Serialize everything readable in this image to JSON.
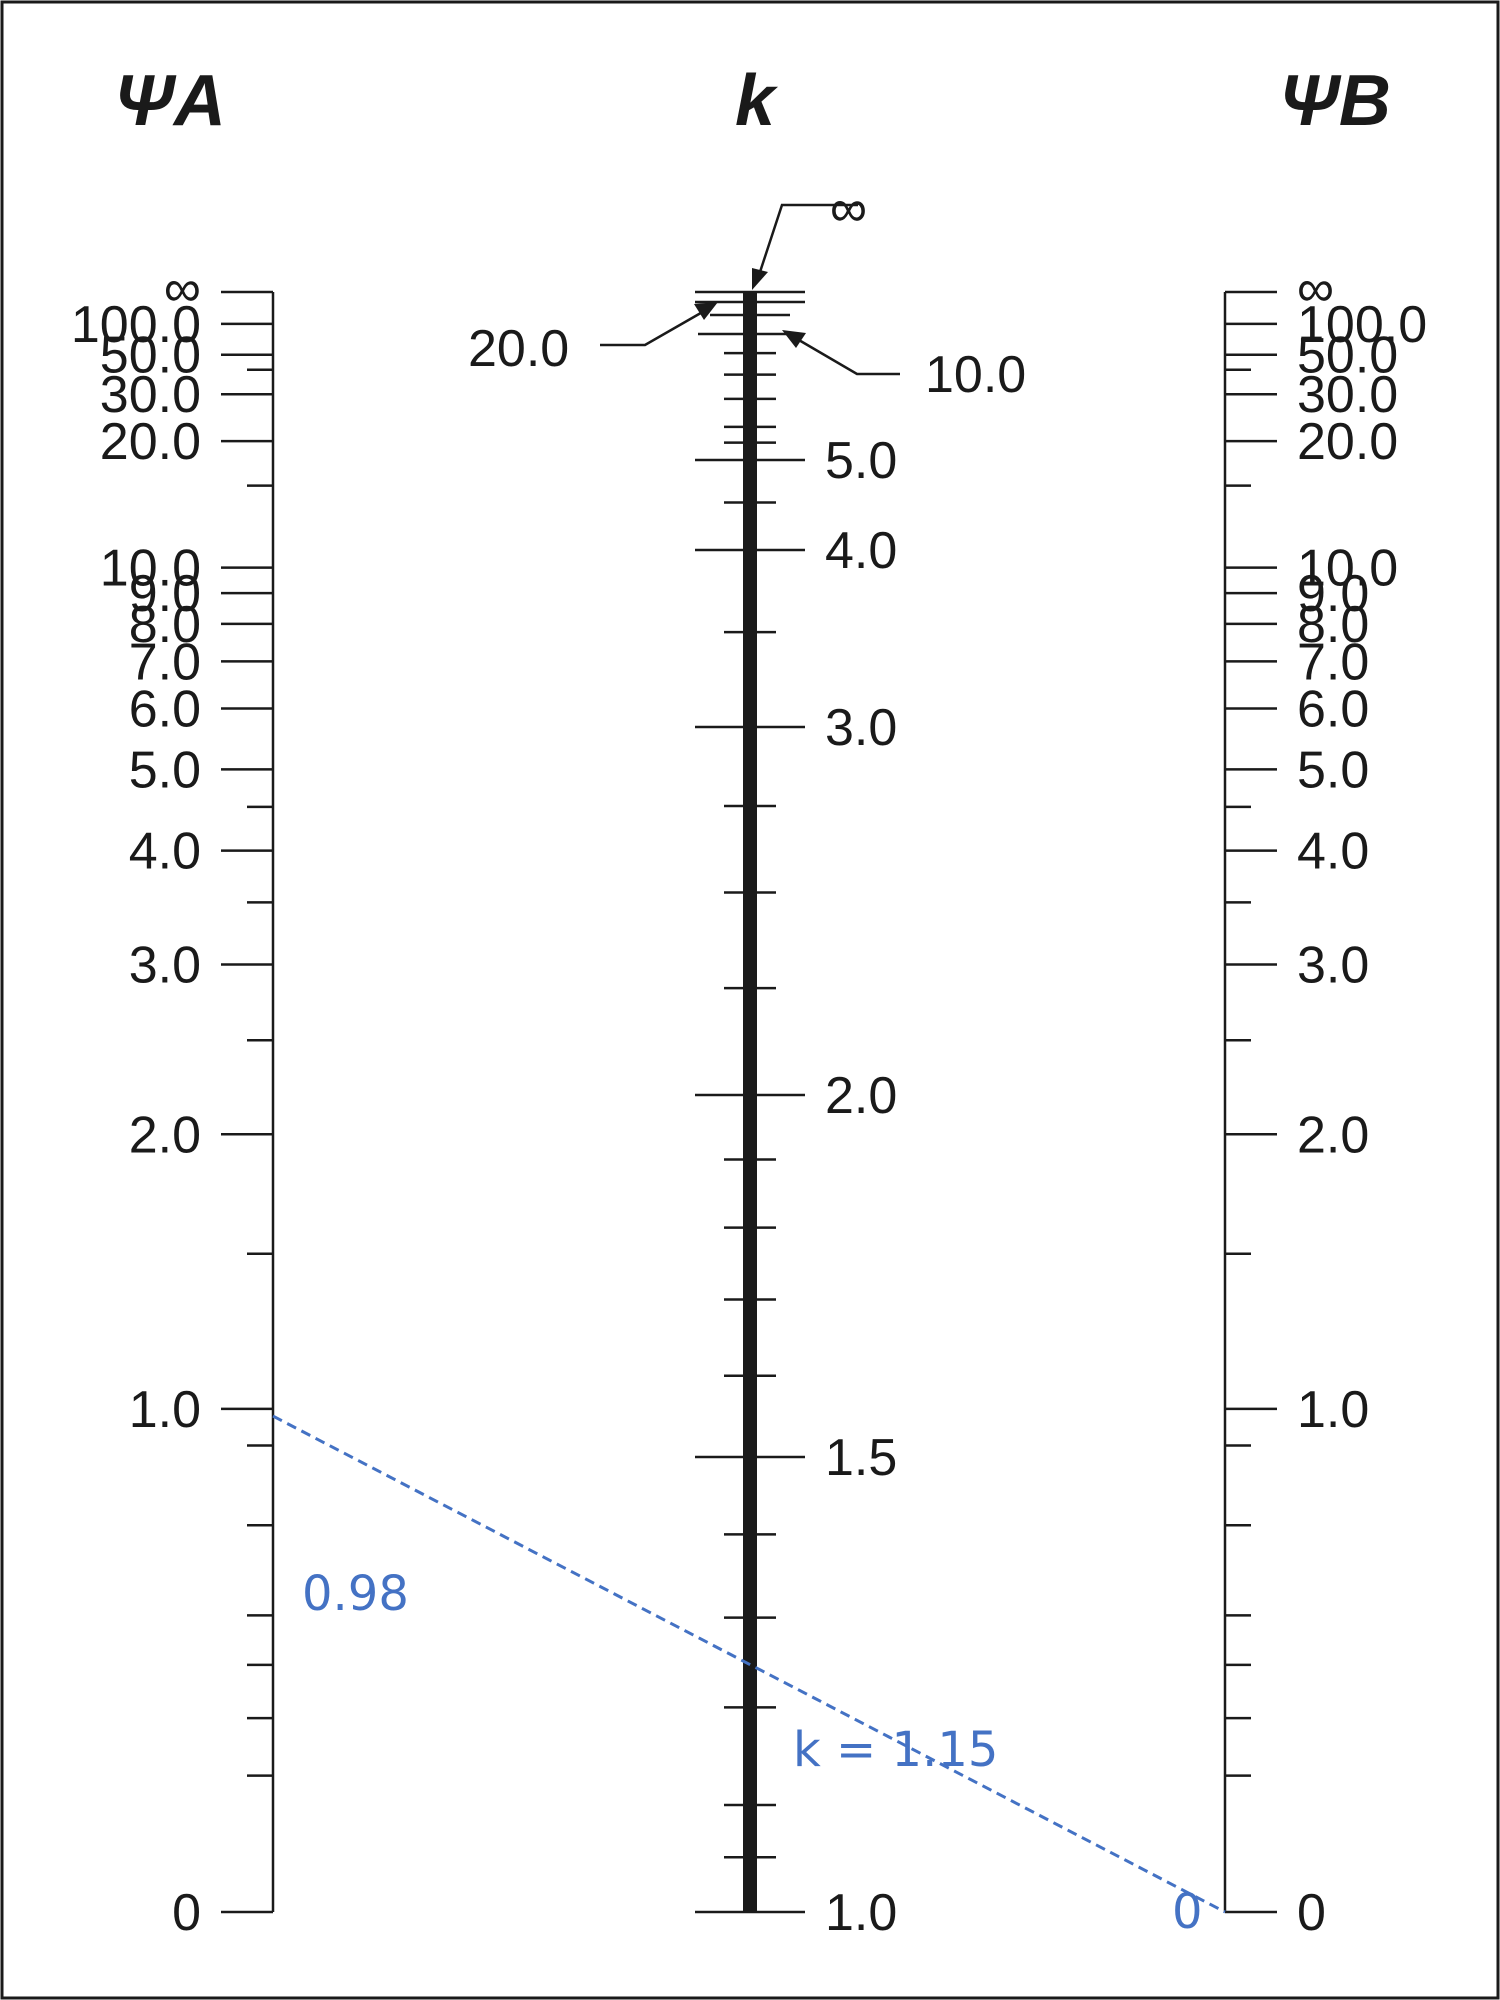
{
  "headings": {
    "psi_a": "ΨA",
    "k": "k",
    "psi_b": "ΨB"
  },
  "psi_scale": {
    "labels": [
      "∞",
      "100.0",
      "50.0",
      "30.0",
      "20.0",
      "10.0",
      "9.0",
      "8.0",
      "7.0",
      "6.0",
      "5.0",
      "4.0",
      "3.0",
      "2.0",
      "1.0",
      "0"
    ],
    "major_values": [
      1000000,
      100,
      50,
      30,
      20,
      10,
      9,
      8,
      7,
      6,
      5,
      4,
      3,
      2,
      1,
      0
    ],
    "minor_values": [
      40,
      15,
      4.5,
      3.5,
      2.5,
      1.5,
      0.9,
      0.7,
      0.5,
      0.4,
      0.3,
      0.2
    ]
  },
  "k_scale": {
    "major_values": [
      5.0,
      4.0,
      3.0,
      2.0,
      1.5,
      1.0
    ],
    "labels": [
      "5.0",
      "4.0",
      "3.0",
      "2.0",
      "1.5",
      "1.0"
    ],
    "minor_values": [
      4.5,
      3.5,
      2.75,
      2.5,
      2.25,
      1.9,
      1.8,
      1.7,
      1.6,
      1.4,
      1.3,
      1.2,
      1.1,
      1.05
    ],
    "upper_minor_values": [
      9,
      8,
      7,
      6,
      5.5
    ],
    "callouts": {
      "infinity": "∞",
      "twenty": "20.0",
      "ten": "10.0"
    }
  },
  "annotation": {
    "psi_a_value": "0.98",
    "k_value_label": "k = 1.15",
    "psi_b_value": "0",
    "psi_a": 0.98,
    "psi_b": 0,
    "k": 1.15,
    "color": "#4472c4"
  },
  "colors": {
    "ink": "#1a1a1a",
    "annotation": "#4472c4"
  }
}
